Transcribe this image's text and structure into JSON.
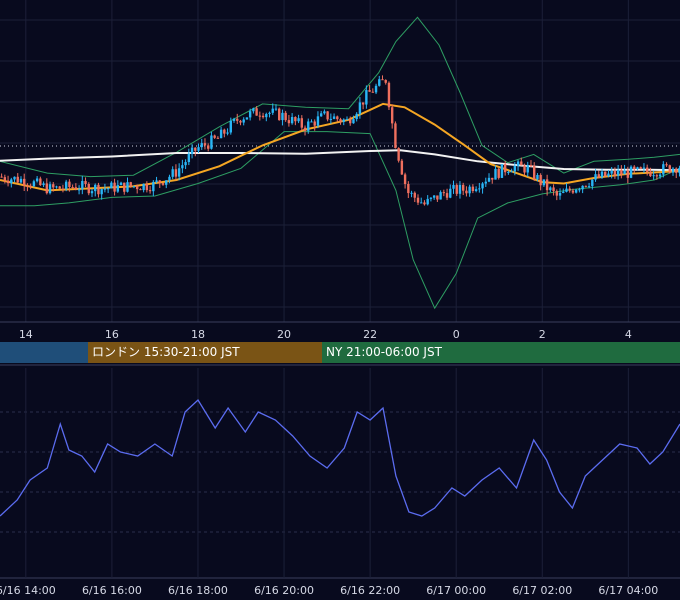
{
  "chart_data": [
    {
      "type": "candlestick",
      "panel": "price",
      "x_tick_labels": [
        "14",
        "16",
        "18",
        "20",
        "22",
        "0",
        "2",
        "4"
      ],
      "x_tick_hours": [
        14,
        16,
        18,
        20,
        22,
        24,
        26,
        28
      ],
      "x_range_hours": [
        13.4,
        29.2
      ],
      "grid": true,
      "horizontal_reference_line": "dotted",
      "series": [
        {
          "role": "candles",
          "up_color": "#29b6f6",
          "down_color": "#ef6f5e"
        },
        {
          "role": "bollinger",
          "color": "#2e9e63"
        },
        {
          "role": "ma_short",
          "color": "#f5a623"
        },
        {
          "role": "ma_long",
          "color": "#f2f2f2"
        }
      ],
      "close_path": [
        [
          13.4,
          1.0
        ],
        [
          14.0,
          0.95
        ],
        [
          14.6,
          0.82
        ],
        [
          15.2,
          0.86
        ],
        [
          15.8,
          0.83
        ],
        [
          16.4,
          0.86
        ],
        [
          17.0,
          0.88
        ],
        [
          17.5,
          1.05
        ],
        [
          18.0,
          1.4
        ],
        [
          18.5,
          1.55
        ],
        [
          19.0,
          1.85
        ],
        [
          19.5,
          1.95
        ],
        [
          20.0,
          1.88
        ],
        [
          20.5,
          1.72
        ],
        [
          21.0,
          1.88
        ],
        [
          21.5,
          1.8
        ],
        [
          22.0,
          2.2
        ],
        [
          22.4,
          2.4
        ],
        [
          22.6,
          1.55
        ],
        [
          22.9,
          0.78
        ],
        [
          23.3,
          0.6
        ],
        [
          23.8,
          0.78
        ],
        [
          24.3,
          0.82
        ],
        [
          24.8,
          1.0
        ],
        [
          25.3,
          1.15
        ],
        [
          25.7,
          1.12
        ],
        [
          26.0,
          0.92
        ],
        [
          26.4,
          0.7
        ],
        [
          26.8,
          0.85
        ],
        [
          27.3,
          0.98
        ],
        [
          27.8,
          1.05
        ],
        [
          28.3,
          1.06
        ],
        [
          28.8,
          1.1
        ],
        [
          29.2,
          1.15
        ]
      ],
      "ma_short_path": [
        [
          13.4,
          0.95
        ],
        [
          14.5,
          0.8
        ],
        [
          15.5,
          0.83
        ],
        [
          16.5,
          0.86
        ],
        [
          17.5,
          0.95
        ],
        [
          18.5,
          1.15
        ],
        [
          19.5,
          1.45
        ],
        [
          20.5,
          1.68
        ],
        [
          21.5,
          1.82
        ],
        [
          22.3,
          2.05
        ],
        [
          22.8,
          2.0
        ],
        [
          23.5,
          1.75
        ],
        [
          24.2,
          1.45
        ],
        [
          24.8,
          1.18
        ],
        [
          25.4,
          1.05
        ],
        [
          26.0,
          0.92
        ],
        [
          26.5,
          0.9
        ],
        [
          27.2,
          0.98
        ],
        [
          28.0,
          1.04
        ],
        [
          29.2,
          1.08
        ]
      ],
      "ma_long_path": [
        [
          13.4,
          1.23
        ],
        [
          14.5,
          1.26
        ],
        [
          16.0,
          1.29
        ],
        [
          17.5,
          1.34
        ],
        [
          19.0,
          1.34
        ],
        [
          20.5,
          1.33
        ],
        [
          22.0,
          1.37
        ],
        [
          22.7,
          1.38
        ],
        [
          23.5,
          1.32
        ],
        [
          24.5,
          1.22
        ],
        [
          25.5,
          1.16
        ],
        [
          26.5,
          1.11
        ],
        [
          27.5,
          1.1
        ],
        [
          28.5,
          1.1
        ],
        [
          29.2,
          1.09
        ]
      ],
      "bb_upper_path": [
        [
          13.4,
          1.22
        ],
        [
          14.5,
          1.05
        ],
        [
          15.5,
          1.0
        ],
        [
          16.5,
          1.02
        ],
        [
          17.5,
          1.35
        ],
        [
          18.5,
          1.72
        ],
        [
          19.5,
          2.05
        ],
        [
          20.5,
          2.0
        ],
        [
          21.5,
          1.98
        ],
        [
          22.2,
          2.5
        ],
        [
          22.6,
          2.95
        ],
        [
          23.1,
          3.3
        ],
        [
          23.6,
          2.9
        ],
        [
          24.1,
          2.2
        ],
        [
          24.6,
          1.45
        ],
        [
          25.2,
          1.2
        ],
        [
          25.8,
          1.32
        ],
        [
          26.5,
          1.05
        ],
        [
          27.2,
          1.22
        ],
        [
          28.0,
          1.25
        ],
        [
          28.6,
          1.28
        ],
        [
          29.2,
          1.32
        ]
      ],
      "bb_lower_path": [
        [
          13.4,
          0.58
        ],
        [
          14.2,
          0.58
        ],
        [
          15.0,
          0.62
        ],
        [
          16.0,
          0.7
        ],
        [
          17.0,
          0.72
        ],
        [
          18.0,
          0.9
        ],
        [
          19.0,
          1.12
        ],
        [
          20.0,
          1.65
        ],
        [
          21.0,
          1.65
        ],
        [
          22.0,
          1.62
        ],
        [
          22.6,
          0.8
        ],
        [
          23.0,
          -0.2
        ],
        [
          23.5,
          -0.9
        ],
        [
          24.0,
          -0.4
        ],
        [
          24.5,
          0.4
        ],
        [
          25.2,
          0.62
        ],
        [
          26.0,
          0.75
        ],
        [
          26.8,
          0.82
        ],
        [
          27.8,
          0.88
        ],
        [
          28.6,
          0.95
        ],
        [
          29.2,
          1.12
        ]
      ]
    },
    {
      "type": "line",
      "panel": "oscillator",
      "x_tick_labels": [
        "6/16 14:00",
        "6/16 16:00",
        "6/16 18:00",
        "6/16 20:00",
        "6/16 22:00",
        "6/17 00:00",
        "6/17 02:00",
        "6/17 04:00"
      ],
      "x_tick_hours": [
        14,
        16,
        18,
        20,
        22,
        24,
        26,
        28
      ],
      "x_range_hours": [
        13.4,
        29.2
      ],
      "y_range": [
        0,
        100
      ],
      "grid": true,
      "series": [
        {
          "color": "#5b6cf0",
          "x": [
            13.4,
            13.8,
            14.1,
            14.5,
            14.8,
            15.0,
            15.3,
            15.6,
            15.9,
            16.2,
            16.6,
            17.0,
            17.4,
            17.7,
            18.0,
            18.4,
            18.7,
            19.1,
            19.4,
            19.8,
            20.2,
            20.6,
            21.0,
            21.4,
            21.7,
            22.0,
            22.3,
            22.6,
            22.9,
            23.2,
            23.5,
            23.9,
            24.2,
            24.6,
            25.0,
            25.4,
            25.8,
            26.1,
            26.4,
            26.7,
            27.0,
            27.4,
            27.8,
            28.2,
            28.5,
            28.8,
            29.2
          ],
          "y": [
            28,
            36,
            46,
            52,
            74,
            61,
            58,
            50,
            64,
            60,
            58,
            64,
            58,
            80,
            86,
            72,
            82,
            70,
            80,
            76,
            68,
            58,
            52,
            62,
            80,
            76,
            82,
            48,
            30,
            28,
            32,
            42,
            38,
            46,
            52,
            42,
            66,
            56,
            40,
            32,
            48,
            56,
            64,
            62,
            54,
            60,
            74
          ]
        }
      ]
    }
  ],
  "sessions": [
    {
      "label": "",
      "color": "#1f4e79"
    },
    {
      "label": "ロンドン 15:30-21:00 JST",
      "color": "#7a5415"
    },
    {
      "label": "NY 21:00-06:00 JST",
      "color": "#1f6b3f"
    }
  ]
}
